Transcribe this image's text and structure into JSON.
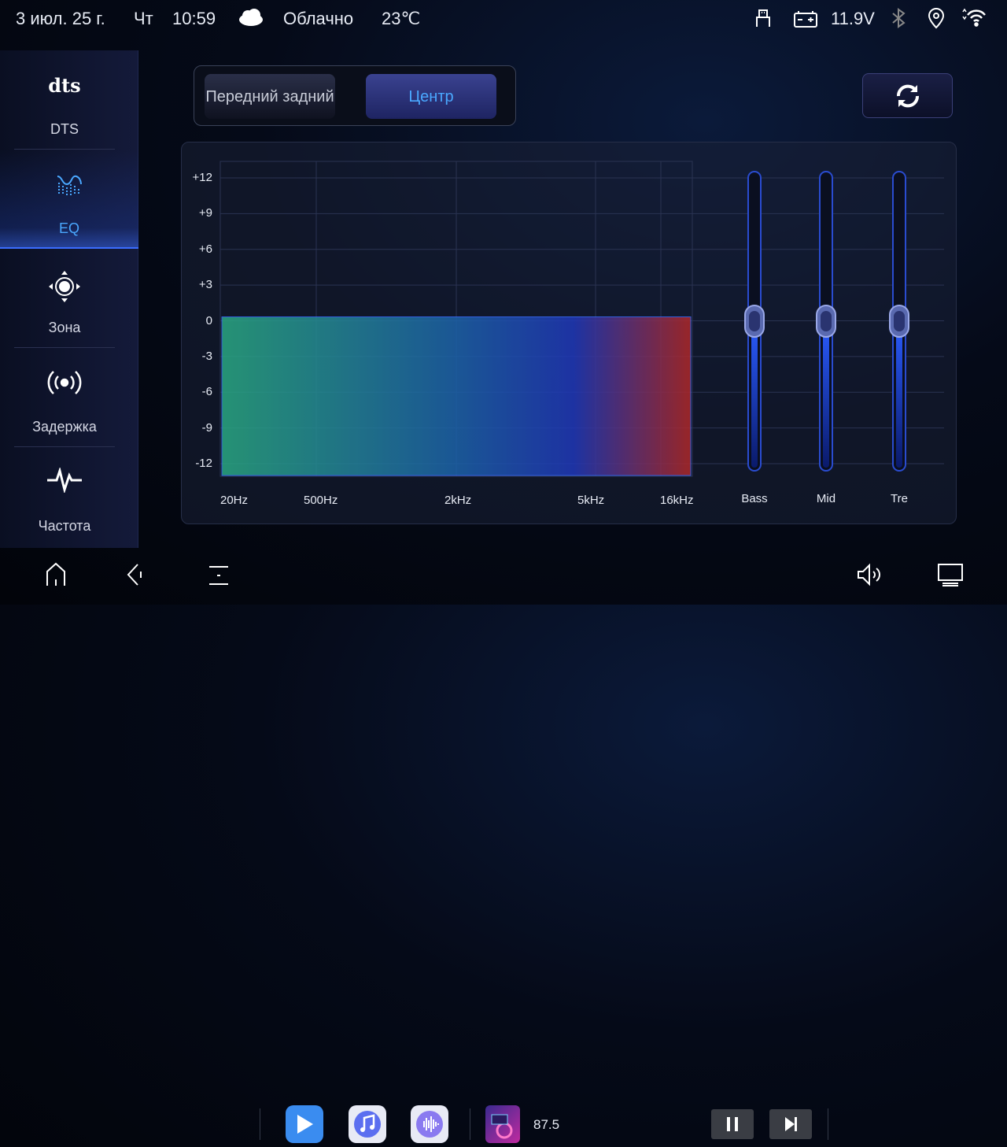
{
  "status_bar": {
    "date": "3 июл. 25 г.",
    "weekday": "Чт",
    "time": "10:59",
    "weather_icon": "cloud-icon",
    "weather": "Облачно",
    "temperature": "23℃",
    "voltage": "11.9V",
    "icons": [
      "usb-icon",
      "battery-icon",
      "bluetooth-icon",
      "location-icon",
      "wifi-icon"
    ]
  },
  "sidebar": {
    "items": [
      {
        "label": "DTS",
        "logo": "dts",
        "icon": "dts-logo-icon",
        "active": false
      },
      {
        "label": "EQ",
        "icon": "equalizer-icon",
        "active": true
      },
      {
        "label": "Зона",
        "icon": "zone-target-icon",
        "active": false
      },
      {
        "label": "Задержка",
        "icon": "broadcast-icon",
        "active": false
      },
      {
        "label": "Частота",
        "icon": "waveform-icon",
        "active": false
      }
    ]
  },
  "segment": {
    "options": [
      {
        "label": "Передний задний",
        "selected": false
      },
      {
        "label": "Центр",
        "selected": true
      }
    ]
  },
  "reset_icon": "refresh-icon",
  "eq": {
    "y_ticks": [
      "+12",
      "+9",
      "+6",
      "+3",
      "0",
      "-3",
      "-6",
      "-9",
      "-12"
    ],
    "x_ticks": [
      "20Hz",
      "500Hz",
      "2kHz",
      "5kHz",
      "16kHz"
    ],
    "range": [
      -12,
      12
    ],
    "current_level": 0,
    "sliders": [
      {
        "label": "Bass",
        "value": 0
      },
      {
        "label": "Mid",
        "value": 0
      },
      {
        "label": "Tre",
        "value": 0
      }
    ]
  },
  "colors": {
    "accent": "#4aa8ff",
    "fill_start": "#2aa882",
    "fill_mid": "#1e4bb0",
    "fill_end": "#b02828"
  },
  "bottom_bar": {
    "radio_frequency": "87.5",
    "nav": [
      "home-icon",
      "back-icon",
      "menu-icon"
    ],
    "apps": [
      "video-player-icon",
      "music-icon",
      "voice-icon",
      "radio-app-icon"
    ],
    "controls": [
      "pause-icon",
      "next-icon",
      "volume-icon",
      "screen-icon"
    ]
  }
}
